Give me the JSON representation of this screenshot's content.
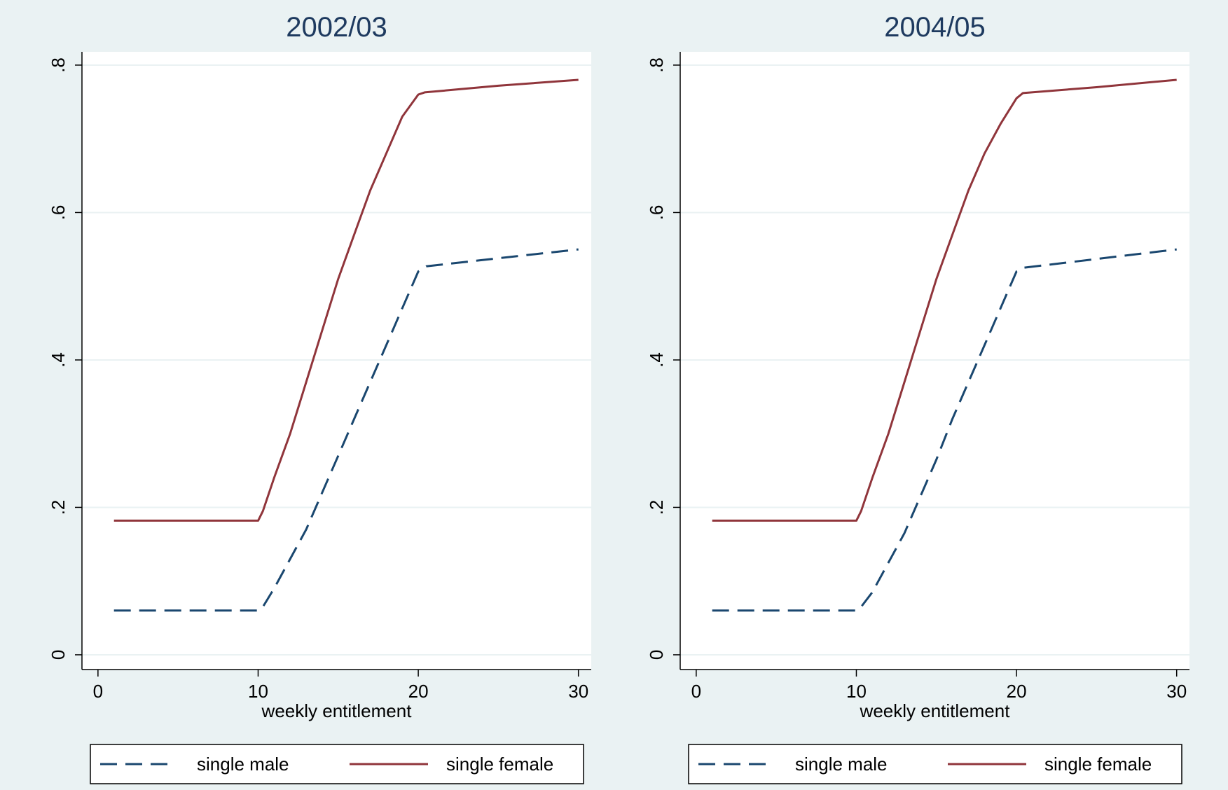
{
  "colors": {
    "figure_background": "#eaf2f3",
    "plot_background": "#ffffff",
    "gridline": "#eaf2f3",
    "title_text": "#1e3a5f",
    "axis_text": "#000000",
    "single_male_line": "#1a476f",
    "single_female_line": "#90353b"
  },
  "chart_data": [
    {
      "type": "line",
      "title": "2002/03",
      "xlabel": "weekly entitlement",
      "ylabel": "",
      "xlim": [
        -1,
        30.8
      ],
      "ylim": [
        -0.02,
        0.818
      ],
      "xticks": [
        0,
        10,
        20,
        30
      ],
      "xtick_labels": [
        "0",
        "10",
        "20",
        "30"
      ],
      "yticks": [
        0,
        0.2,
        0.4,
        0.6,
        0.8
      ],
      "ytick_labels": [
        "0",
        ".2",
        ".4",
        ".6",
        ".8"
      ],
      "grid": true,
      "legend_position": "bottom",
      "series": [
        {
          "name": "single male",
          "style": "dashed",
          "x": [
            1,
            10,
            10.3,
            11,
            12,
            13,
            14,
            15,
            16,
            17,
            18,
            19,
            20,
            20.5,
            25,
            30
          ],
          "y": [
            0.06,
            0.06,
            0.065,
            0.09,
            0.13,
            0.17,
            0.22,
            0.27,
            0.32,
            0.37,
            0.42,
            0.47,
            0.52,
            0.527,
            0.538,
            0.55
          ]
        },
        {
          "name": "single female",
          "style": "solid",
          "x": [
            1,
            10,
            10.3,
            11,
            12,
            13,
            14,
            15,
            16,
            17,
            18,
            19,
            20,
            20.4,
            25,
            30
          ],
          "y": [
            0.182,
            0.182,
            0.195,
            0.24,
            0.3,
            0.37,
            0.44,
            0.51,
            0.57,
            0.63,
            0.68,
            0.73,
            0.76,
            0.763,
            0.772,
            0.78
          ]
        }
      ]
    },
    {
      "type": "line",
      "title": "2004/05",
      "xlabel": "weekly entitlement",
      "ylabel": "",
      "xlim": [
        -1,
        30.8
      ],
      "ylim": [
        -0.02,
        0.818
      ],
      "xticks": [
        0,
        10,
        20,
        30
      ],
      "xtick_labels": [
        "0",
        "10",
        "20",
        "30"
      ],
      "yticks": [
        0,
        0.2,
        0.4,
        0.6,
        0.8
      ],
      "ytick_labels": [
        "0",
        ".2",
        ".4",
        ".6",
        ".8"
      ],
      "grid": true,
      "legend_position": "bottom",
      "series": [
        {
          "name": "single male",
          "style": "dashed",
          "x": [
            1,
            10,
            10.3,
            11,
            12,
            13,
            14,
            15,
            16,
            17,
            18,
            19,
            20,
            20.4,
            25,
            30
          ],
          "y": [
            0.06,
            0.06,
            0.065,
            0.085,
            0.125,
            0.165,
            0.215,
            0.265,
            0.32,
            0.37,
            0.42,
            0.47,
            0.52,
            0.525,
            0.537,
            0.55
          ]
        },
        {
          "name": "single female",
          "style": "solid",
          "x": [
            1,
            10,
            10.3,
            11,
            12,
            13,
            14,
            15,
            16,
            17,
            18,
            19,
            20,
            20.4,
            25,
            30
          ],
          "y": [
            0.182,
            0.182,
            0.195,
            0.24,
            0.3,
            0.37,
            0.44,
            0.51,
            0.57,
            0.63,
            0.68,
            0.72,
            0.755,
            0.762,
            0.77,
            0.78
          ]
        }
      ]
    }
  ]
}
